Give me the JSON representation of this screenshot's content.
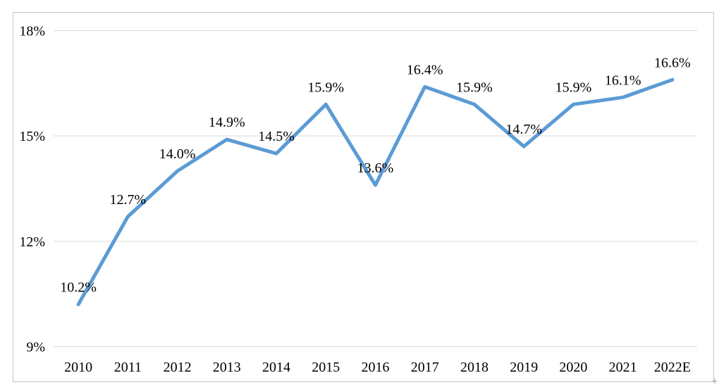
{
  "chart_data": {
    "type": "line",
    "title": "",
    "xlabel": "",
    "ylabel": "",
    "categories": [
      "2010",
      "2011",
      "2012",
      "2013",
      "2014",
      "2015",
      "2016",
      "2017",
      "2018",
      "2019",
      "2020",
      "2021",
      "2022E"
    ],
    "series": [
      {
        "name": "",
        "values": [
          10.2,
          12.7,
          14.0,
          14.9,
          14.5,
          15.9,
          13.6,
          16.4,
          15.9,
          14.7,
          15.9,
          16.1,
          16.6
        ],
        "data_labels": [
          "10.2%",
          "12.7%",
          "14.0%",
          "14.9%",
          "14.5%",
          "15.9%",
          "13.6%",
          "16.4%",
          "15.9%",
          "14.7%",
          "15.9%",
          "16.1%",
          "16.6%"
        ]
      }
    ],
    "ylim": [
      9,
      18
    ],
    "yticks": [
      18,
      15,
      12,
      9
    ],
    "ytick_labels": [
      "18%",
      "15%",
      "12%",
      "9%"
    ],
    "grid": true,
    "legend": "none",
    "colors": {
      "line": "#5b9bd5",
      "gridline": "#d9d9d9",
      "frame_border": "#c6c6c6",
      "text": "#000000"
    }
  },
  "artifacts": {
    "corner_mark": "+"
  }
}
